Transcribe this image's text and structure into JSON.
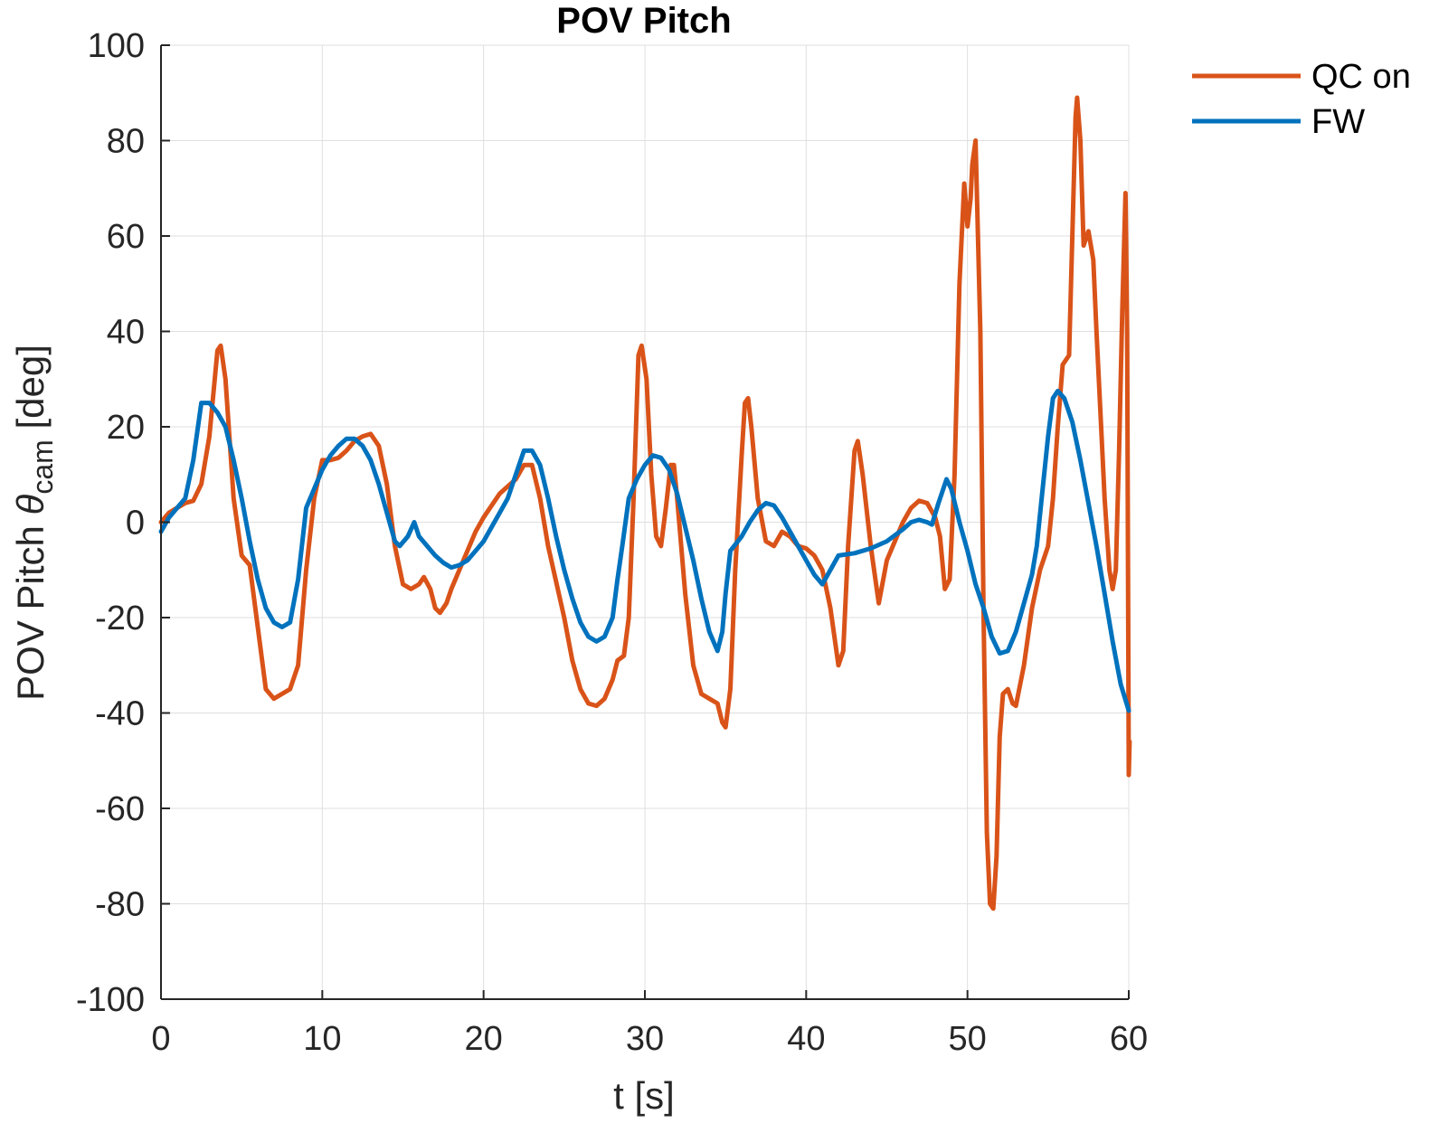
{
  "chart_data": {
    "type": "line",
    "title": "POV Pitch",
    "xlabel": "t [s]",
    "ylabel": {
      "main": "POV Pitch ",
      "symbol": "θ",
      "subscript": "cam",
      "unit": " [deg]"
    },
    "xlim": [
      0,
      60
    ],
    "ylim": [
      -100,
      100
    ],
    "xticks": [
      0,
      10,
      20,
      30,
      40,
      50,
      60
    ],
    "yticks": [
      -100,
      -80,
      -60,
      -40,
      -20,
      0,
      20,
      40,
      60,
      80,
      100
    ],
    "grid": true,
    "legend_position": "top-right (outside)",
    "series": [
      {
        "name": "QC on",
        "color": "#D95319",
        "points": [
          [
            0,
            0
          ],
          [
            0.5,
            2
          ],
          [
            1,
            3
          ],
          [
            1.5,
            4
          ],
          [
            2,
            4.5
          ],
          [
            2.5,
            8
          ],
          [
            3,
            18
          ],
          [
            3.5,
            36
          ],
          [
            3.7,
            37
          ],
          [
            4,
            30
          ],
          [
            4.5,
            5
          ],
          [
            5,
            -7
          ],
          [
            5.5,
            -9
          ],
          [
            6,
            -22
          ],
          [
            6.5,
            -35
          ],
          [
            7,
            -37
          ],
          [
            7.5,
            -36
          ],
          [
            8,
            -35
          ],
          [
            8.5,
            -30
          ],
          [
            9,
            -10
          ],
          [
            9.5,
            5
          ],
          [
            10,
            13
          ],
          [
            10.5,
            13
          ],
          [
            11,
            13.5
          ],
          [
            11.5,
            15
          ],
          [
            12,
            17
          ],
          [
            12.5,
            18
          ],
          [
            13,
            18.5
          ],
          [
            13.5,
            16
          ],
          [
            14,
            8
          ],
          [
            14.5,
            -5
          ],
          [
            15,
            -13
          ],
          [
            15.5,
            -14
          ],
          [
            16,
            -13
          ],
          [
            16.3,
            -11.5
          ],
          [
            16.7,
            -14
          ],
          [
            17,
            -18
          ],
          [
            17.3,
            -19
          ],
          [
            17.7,
            -17
          ],
          [
            18,
            -14
          ],
          [
            18.5,
            -10
          ],
          [
            19,
            -6
          ],
          [
            19.5,
            -2
          ],
          [
            20,
            1
          ],
          [
            21,
            6
          ],
          [
            22,
            9
          ],
          [
            22.5,
            12
          ],
          [
            23,
            12
          ],
          [
            23.5,
            5
          ],
          [
            24,
            -5
          ],
          [
            25,
            -20
          ],
          [
            25.5,
            -29
          ],
          [
            26,
            -35
          ],
          [
            26.5,
            -38
          ],
          [
            27,
            -38.5
          ],
          [
            27.5,
            -37
          ],
          [
            28,
            -33
          ],
          [
            28.3,
            -29
          ],
          [
            28.7,
            -28
          ],
          [
            29,
            -20
          ],
          [
            29.3,
            5
          ],
          [
            29.6,
            35
          ],
          [
            29.8,
            37
          ],
          [
            30.1,
            30
          ],
          [
            30.4,
            10
          ],
          [
            30.7,
            -3
          ],
          [
            31,
            -5
          ],
          [
            31.3,
            3
          ],
          [
            31.6,
            12
          ],
          [
            31.8,
            12
          ],
          [
            32,
            5
          ],
          [
            32.5,
            -15
          ],
          [
            33,
            -30
          ],
          [
            33.5,
            -36
          ],
          [
            34,
            -37
          ],
          [
            34.5,
            -38
          ],
          [
            34.8,
            -42
          ],
          [
            35,
            -43
          ],
          [
            35.3,
            -35
          ],
          [
            35.6,
            -10
          ],
          [
            36,
            14
          ],
          [
            36.2,
            25
          ],
          [
            36.4,
            26
          ],
          [
            36.6,
            20
          ],
          [
            37,
            5
          ],
          [
            37.5,
            -4
          ],
          [
            38,
            -5
          ],
          [
            38.5,
            -2
          ],
          [
            39,
            -3
          ],
          [
            39.5,
            -5
          ],
          [
            40,
            -5.5
          ],
          [
            40.5,
            -7
          ],
          [
            41,
            -10
          ],
          [
            41.5,
            -18
          ],
          [
            42,
            -30
          ],
          [
            42.3,
            -27
          ],
          [
            42.6,
            -5
          ],
          [
            43,
            15
          ],
          [
            43.2,
            17
          ],
          [
            43.5,
            10
          ],
          [
            44,
            -5
          ],
          [
            44.5,
            -17
          ],
          [
            45,
            -8
          ],
          [
            45.5,
            -4
          ],
          [
            46,
            0
          ],
          [
            46.5,
            3
          ],
          [
            47,
            4.5
          ],
          [
            47.5,
            4
          ],
          [
            48,
            1
          ],
          [
            48.3,
            -3
          ],
          [
            48.6,
            -14
          ],
          [
            48.9,
            -12
          ],
          [
            49.2,
            10
          ],
          [
            49.5,
            50
          ],
          [
            49.8,
            71
          ],
          [
            50,
            62
          ],
          [
            50.2,
            68
          ],
          [
            50.3,
            75
          ],
          [
            50.5,
            80
          ],
          [
            50.8,
            40
          ],
          [
            51,
            -20
          ],
          [
            51.2,
            -65
          ],
          [
            51.4,
            -80
          ],
          [
            51.6,
            -81
          ],
          [
            51.8,
            -70
          ],
          [
            52,
            -45
          ],
          [
            52.2,
            -36
          ],
          [
            52.5,
            -35
          ],
          [
            52.8,
            -38
          ],
          [
            53,
            -38.5
          ],
          [
            53.5,
            -30
          ],
          [
            54,
            -18
          ],
          [
            54.5,
            -10
          ],
          [
            55,
            -5
          ],
          [
            55.3,
            5
          ],
          [
            55.6,
            20
          ],
          [
            55.9,
            33
          ],
          [
            56.1,
            34
          ],
          [
            56.3,
            35
          ],
          [
            56.5,
            60
          ],
          [
            56.7,
            85
          ],
          [
            56.8,
            89
          ],
          [
            57,
            80
          ],
          [
            57.2,
            58
          ],
          [
            57.5,
            61
          ],
          [
            57.8,
            55
          ],
          [
            58,
            40
          ],
          [
            58.5,
            5
          ],
          [
            58.8,
            -10
          ],
          [
            59,
            -14
          ],
          [
            59.2,
            -10
          ],
          [
            59.4,
            15
          ],
          [
            59.6,
            45
          ],
          [
            59.8,
            69
          ],
          [
            59.9,
            40
          ],
          [
            60,
            -53
          ],
          [
            60.05,
            -46
          ]
        ]
      },
      {
        "name": "FW",
        "color": "#0072BD",
        "points": [
          [
            0,
            -2
          ],
          [
            0.5,
            1
          ],
          [
            1,
            3
          ],
          [
            1.5,
            5
          ],
          [
            2,
            13
          ],
          [
            2.5,
            25
          ],
          [
            3,
            25
          ],
          [
            3.5,
            23
          ],
          [
            4,
            20
          ],
          [
            4.5,
            13
          ],
          [
            5,
            5
          ],
          [
            5.5,
            -4
          ],
          [
            6,
            -12
          ],
          [
            6.5,
            -18
          ],
          [
            7,
            -21
          ],
          [
            7.5,
            -22
          ],
          [
            8,
            -21
          ],
          [
            8.5,
            -12
          ],
          [
            9,
            3
          ],
          [
            9.5,
            7
          ],
          [
            10,
            11
          ],
          [
            10.5,
            14
          ],
          [
            11,
            16
          ],
          [
            11.5,
            17.5
          ],
          [
            12,
            17.5
          ],
          [
            12.5,
            16
          ],
          [
            13,
            13
          ],
          [
            13.5,
            8
          ],
          [
            14,
            2
          ],
          [
            14.5,
            -4
          ],
          [
            14.8,
            -5
          ],
          [
            15.3,
            -3
          ],
          [
            15.7,
            0
          ],
          [
            16,
            -3
          ],
          [
            16.5,
            -5
          ],
          [
            17,
            -7
          ],
          [
            17.5,
            -8.5
          ],
          [
            18,
            -9.5
          ],
          [
            18.5,
            -9
          ],
          [
            19,
            -8
          ],
          [
            19.5,
            -6
          ],
          [
            20,
            -4
          ],
          [
            21,
            2
          ],
          [
            21.5,
            5
          ],
          [
            22,
            10
          ],
          [
            22.5,
            15
          ],
          [
            23,
            15
          ],
          [
            23.5,
            12
          ],
          [
            24,
            5
          ],
          [
            24.5,
            -3
          ],
          [
            25,
            -10
          ],
          [
            25.5,
            -16
          ],
          [
            26,
            -21
          ],
          [
            26.5,
            -24
          ],
          [
            27,
            -25
          ],
          [
            27.5,
            -24
          ],
          [
            28,
            -20
          ],
          [
            28.3,
            -12
          ],
          [
            28.6,
            -5
          ],
          [
            29,
            5
          ],
          [
            29.5,
            9
          ],
          [
            30,
            12
          ],
          [
            30.5,
            14
          ],
          [
            31,
            13.5
          ],
          [
            31.5,
            11
          ],
          [
            32,
            6
          ],
          [
            32.5,
            -1
          ],
          [
            33,
            -8
          ],
          [
            33.5,
            -16
          ],
          [
            34,
            -23
          ],
          [
            34.5,
            -27
          ],
          [
            34.8,
            -23
          ],
          [
            35,
            -15
          ],
          [
            35.3,
            -6
          ],
          [
            36,
            -3
          ],
          [
            36.5,
            0
          ],
          [
            37,
            2.5
          ],
          [
            37.5,
            4
          ],
          [
            38,
            3.5
          ],
          [
            38.5,
            1
          ],
          [
            39,
            -2
          ],
          [
            39.5,
            -5
          ],
          [
            40,
            -8
          ],
          [
            40.5,
            -11
          ],
          [
            41,
            -13
          ],
          [
            41.5,
            -10
          ],
          [
            42,
            -7
          ],
          [
            43,
            -6.5
          ],
          [
            44,
            -5.5
          ],
          [
            45,
            -4
          ],
          [
            46,
            -1.5
          ],
          [
            46.5,
            0
          ],
          [
            47,
            0.5
          ],
          [
            47.5,
            0
          ],
          [
            47.8,
            -0.5
          ],
          [
            48.2,
            4
          ],
          [
            48.7,
            9
          ],
          [
            49,
            7
          ],
          [
            49.5,
            0
          ],
          [
            50,
            -6
          ],
          [
            50.5,
            -13
          ],
          [
            51,
            -18
          ],
          [
            51.5,
            -24
          ],
          [
            52,
            -27.5
          ],
          [
            52.5,
            -27
          ],
          [
            53,
            -23
          ],
          [
            53.5,
            -17
          ],
          [
            54,
            -11
          ],
          [
            54.3,
            -5
          ],
          [
            54.6,
            5
          ],
          [
            55,
            18
          ],
          [
            55.3,
            26
          ],
          [
            55.6,
            27.5
          ],
          [
            56,
            26
          ],
          [
            56.5,
            21
          ],
          [
            57,
            13
          ],
          [
            57.5,
            4
          ],
          [
            58,
            -5
          ],
          [
            58.5,
            -15
          ],
          [
            59,
            -25
          ],
          [
            59.5,
            -34
          ],
          [
            60,
            -39.5
          ]
        ]
      }
    ]
  }
}
